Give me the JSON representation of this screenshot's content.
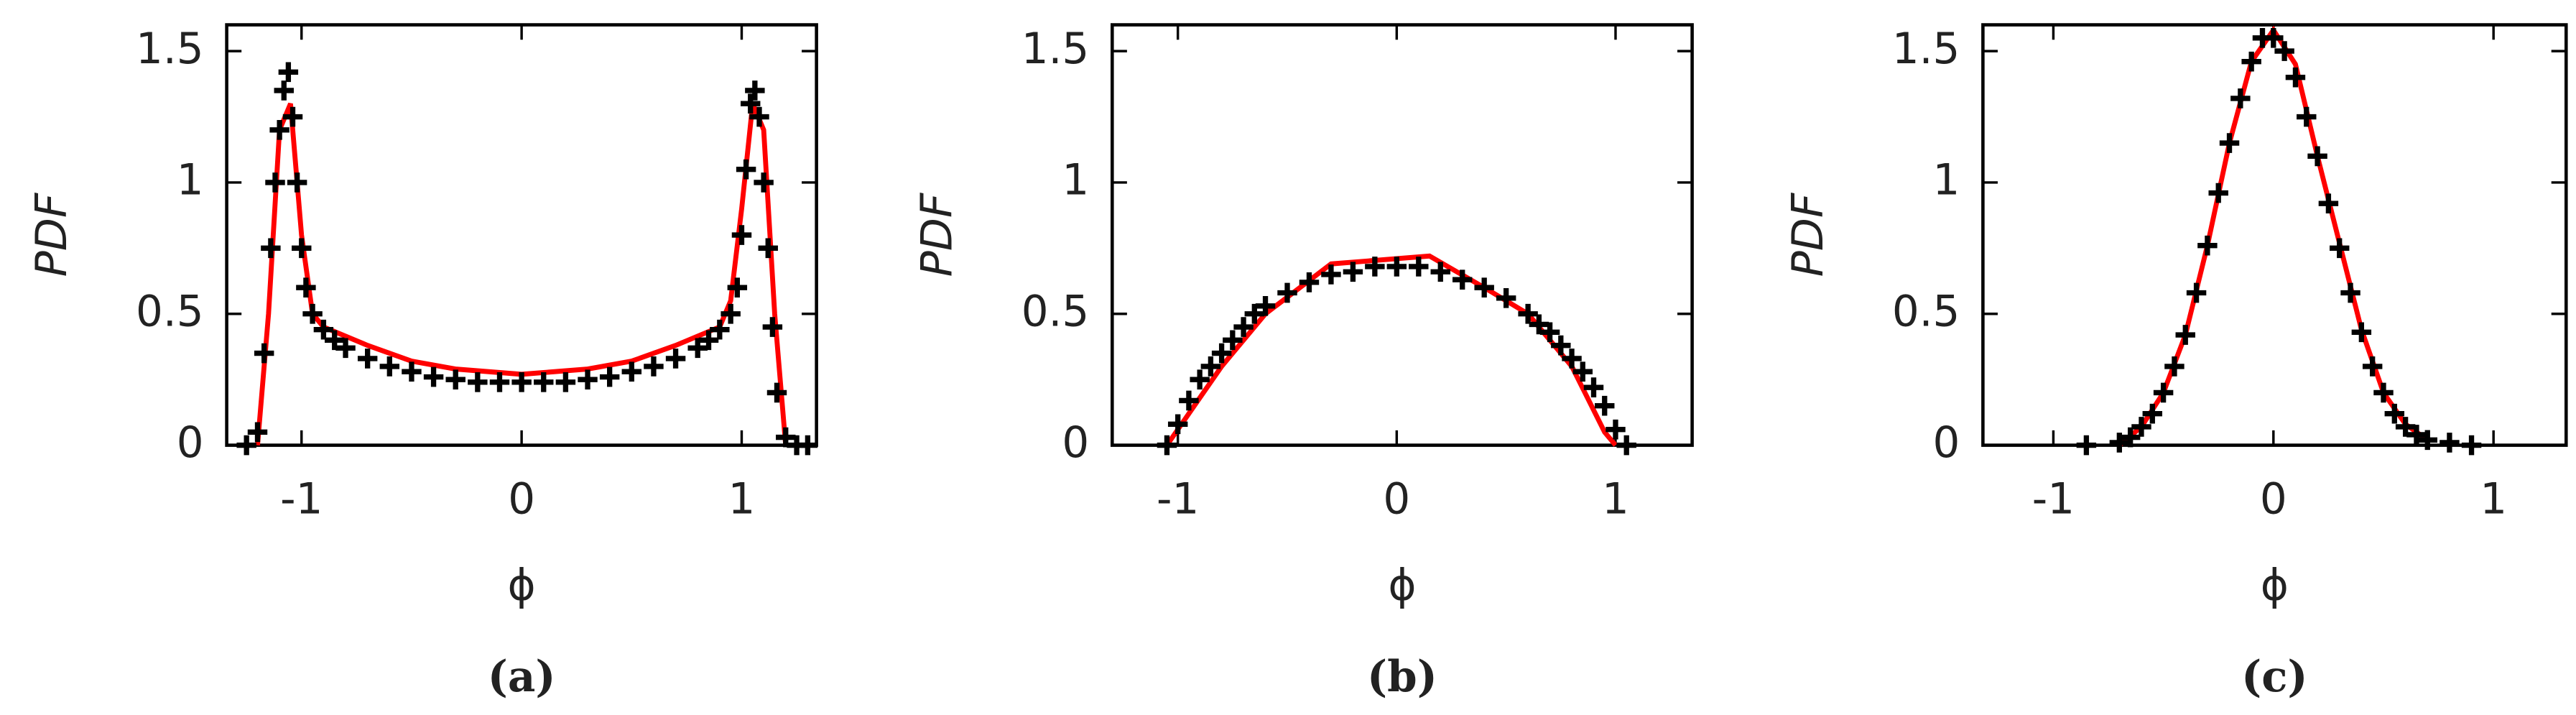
{
  "chart_data": [
    {
      "type": "line",
      "ylabel": "PDF",
      "xlabel": "ϕ",
      "caption": "(a)",
      "xlim": [
        -1.34,
        1.34
      ],
      "ylim": [
        0,
        1.6
      ],
      "xticks": [
        -1,
        0,
        1
      ],
      "yticks": [
        0,
        0.5,
        1,
        1.5
      ],
      "grid": false,
      "series": [
        {
          "color": "#ff0000",
          "x": [
            -1.2,
            -1.15,
            -1.1,
            -1.05,
            -1.0,
            -0.95,
            -0.9,
            -0.7,
            -0.5,
            -0.3,
            0,
            0.3,
            0.5,
            0.7,
            0.9,
            0.95,
            1.0,
            1.05,
            1.1,
            1.15,
            1.2
          ],
          "values": [
            0,
            0.5,
            1.2,
            1.3,
            0.8,
            0.5,
            0.45,
            0.38,
            0.32,
            0.29,
            0.27,
            0.29,
            0.32,
            0.38,
            0.45,
            0.55,
            0.9,
            1.3,
            1.2,
            0.5,
            0
          ]
        },
        {
          "color": "#000000",
          "marker": "+",
          "x": [
            -1.25,
            -1.2,
            -1.17,
            -1.14,
            -1.12,
            -1.1,
            -1.08,
            -1.06,
            -1.04,
            -1.02,
            -1.0,
            -0.98,
            -0.95,
            -0.9,
            -0.85,
            -0.8,
            -0.7,
            -0.6,
            -0.5,
            -0.4,
            -0.3,
            -0.2,
            -0.1,
            0,
            0.1,
            0.2,
            0.3,
            0.4,
            0.5,
            0.6,
            0.7,
            0.8,
            0.85,
            0.9,
            0.95,
            0.98,
            1.0,
            1.02,
            1.04,
            1.06,
            1.08,
            1.1,
            1.12,
            1.14,
            1.16,
            1.2,
            1.25,
            1.3
          ],
          "values": [
            0,
            0.05,
            0.35,
            0.75,
            1.0,
            1.2,
            1.35,
            1.42,
            1.25,
            1.0,
            0.75,
            0.6,
            0.5,
            0.44,
            0.4,
            0.37,
            0.33,
            0.3,
            0.28,
            0.26,
            0.25,
            0.24,
            0.24,
            0.24,
            0.24,
            0.24,
            0.25,
            0.26,
            0.28,
            0.3,
            0.33,
            0.37,
            0.4,
            0.44,
            0.5,
            0.6,
            0.8,
            1.05,
            1.3,
            1.35,
            1.25,
            1.0,
            0.75,
            0.45,
            0.2,
            0.03,
            0,
            0
          ]
        }
      ]
    },
    {
      "type": "line",
      "ylabel": "PDF",
      "xlabel": "ϕ",
      "caption": "(b)",
      "xlim": [
        -1.3,
        1.35
      ],
      "ylim": [
        0,
        1.6
      ],
      "xticks": [
        -1,
        0,
        1
      ],
      "yticks": [
        0,
        0.5,
        1,
        1.5
      ],
      "grid": false,
      "series": [
        {
          "color": "#ff0000",
          "x": [
            -1.05,
            -0.8,
            -0.6,
            -0.3,
            0,
            0.15,
            0.4,
            0.6,
            0.8,
            0.95,
            1.0
          ],
          "values": [
            0,
            0.3,
            0.5,
            0.69,
            0.71,
            0.72,
            0.6,
            0.5,
            0.3,
            0.05,
            0
          ]
        },
        {
          "color": "#000000",
          "marker": "+",
          "x": [
            -1.05,
            -1.0,
            -0.95,
            -0.9,
            -0.85,
            -0.8,
            -0.75,
            -0.7,
            -0.65,
            -0.6,
            -0.5,
            -0.4,
            -0.3,
            -0.2,
            -0.1,
            0,
            0.1,
            0.2,
            0.3,
            0.4,
            0.5,
            0.6,
            0.65,
            0.7,
            0.75,
            0.8,
            0.85,
            0.9,
            0.95,
            1.0,
            1.05
          ],
          "values": [
            0,
            0.08,
            0.17,
            0.25,
            0.3,
            0.35,
            0.4,
            0.45,
            0.5,
            0.53,
            0.58,
            0.62,
            0.65,
            0.66,
            0.68,
            0.68,
            0.68,
            0.66,
            0.63,
            0.6,
            0.56,
            0.5,
            0.46,
            0.43,
            0.38,
            0.33,
            0.28,
            0.22,
            0.15,
            0.06,
            0
          ]
        }
      ]
    },
    {
      "type": "line",
      "ylabel": "PDF",
      "xlabel": "ϕ",
      "caption": "(c)",
      "xlim": [
        -1.32,
        1.33
      ],
      "ylim": [
        0,
        1.6
      ],
      "xticks": [
        -1,
        0,
        1
      ],
      "yticks": [
        0,
        0.5,
        1,
        1.5
      ],
      "grid": false,
      "series": [
        {
          "color": "#ff0000",
          "x": [
            -0.7,
            -0.6,
            -0.5,
            -0.4,
            -0.3,
            -0.2,
            -0.1,
            0,
            0.1,
            0.2,
            0.3,
            0.4,
            0.5,
            0.6,
            0.7
          ],
          "values": [
            0,
            0.07,
            0.2,
            0.42,
            0.76,
            1.15,
            1.46,
            1.58,
            1.45,
            1.1,
            0.77,
            0.44,
            0.2,
            0.08,
            0.02
          ]
        },
        {
          "color": "#000000",
          "marker": "+",
          "x": [
            -0.85,
            -0.7,
            -0.65,
            -0.6,
            -0.55,
            -0.5,
            -0.45,
            -0.4,
            -0.35,
            -0.3,
            -0.25,
            -0.2,
            -0.15,
            -0.1,
            -0.05,
            0,
            0.05,
            0.1,
            0.15,
            0.2,
            0.25,
            0.3,
            0.35,
            0.4,
            0.45,
            0.5,
            0.55,
            0.6,
            0.65,
            0.7,
            0.8,
            0.9
          ],
          "values": [
            0,
            0.01,
            0.03,
            0.07,
            0.12,
            0.2,
            0.3,
            0.42,
            0.58,
            0.76,
            0.96,
            1.15,
            1.32,
            1.46,
            1.55,
            1.55,
            1.5,
            1.4,
            1.25,
            1.1,
            0.92,
            0.75,
            0.58,
            0.43,
            0.3,
            0.2,
            0.12,
            0.07,
            0.04,
            0.02,
            0.01,
            0
          ]
        }
      ]
    }
  ]
}
